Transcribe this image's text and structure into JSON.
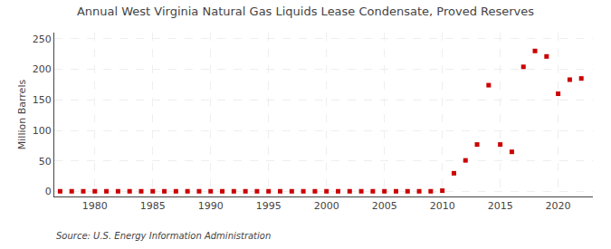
{
  "chart_data": {
    "type": "scatter",
    "title": "Annual West Virginia Natural Gas Liquids Lease Condensate, Proved Reserves",
    "ylabel": "Million Barrels",
    "source": "Source: U.S. Energy Information Administration",
    "x": [
      1977,
      1978,
      1979,
      1980,
      1981,
      1982,
      1983,
      1984,
      1985,
      1986,
      1987,
      1988,
      1989,
      1990,
      1991,
      1992,
      1993,
      1994,
      1995,
      1996,
      1997,
      1998,
      1999,
      2000,
      2001,
      2002,
      2003,
      2004,
      2005,
      2006,
      2007,
      2008,
      2009,
      2010,
      2011,
      2012,
      2013,
      2014,
      2015,
      2016,
      2017,
      2018,
      2019,
      2020,
      2021,
      2022
    ],
    "values": [
      0.5,
      0.5,
      0.5,
      0.5,
      0.5,
      0.5,
      0.5,
      0.5,
      0.5,
      0.5,
      0.5,
      0.5,
      0.5,
      0.5,
      0.5,
      0.5,
      0.5,
      0.5,
      0.5,
      0.5,
      0.5,
      0.5,
      0.5,
      0.5,
      0.5,
      0.5,
      0.5,
      0.5,
      0.5,
      0.5,
      0.5,
      0.5,
      0.5,
      1.5,
      30.0,
      51.0,
      77.0,
      174.0,
      77.0,
      65.0,
      204.0,
      230.0,
      221.0,
      160.0,
      183.0,
      185.0
    ],
    "color": "#cc0000",
    "marker": "square",
    "xlim": [
      1976.5,
      2023
    ],
    "ylim": [
      -8,
      260
    ],
    "xticks": [
      1980,
      1985,
      1990,
      1995,
      2000,
      2005,
      2010,
      2015,
      2020
    ],
    "yticks": [
      0,
      50,
      100,
      150,
      200,
      250
    ],
    "grid": true
  }
}
